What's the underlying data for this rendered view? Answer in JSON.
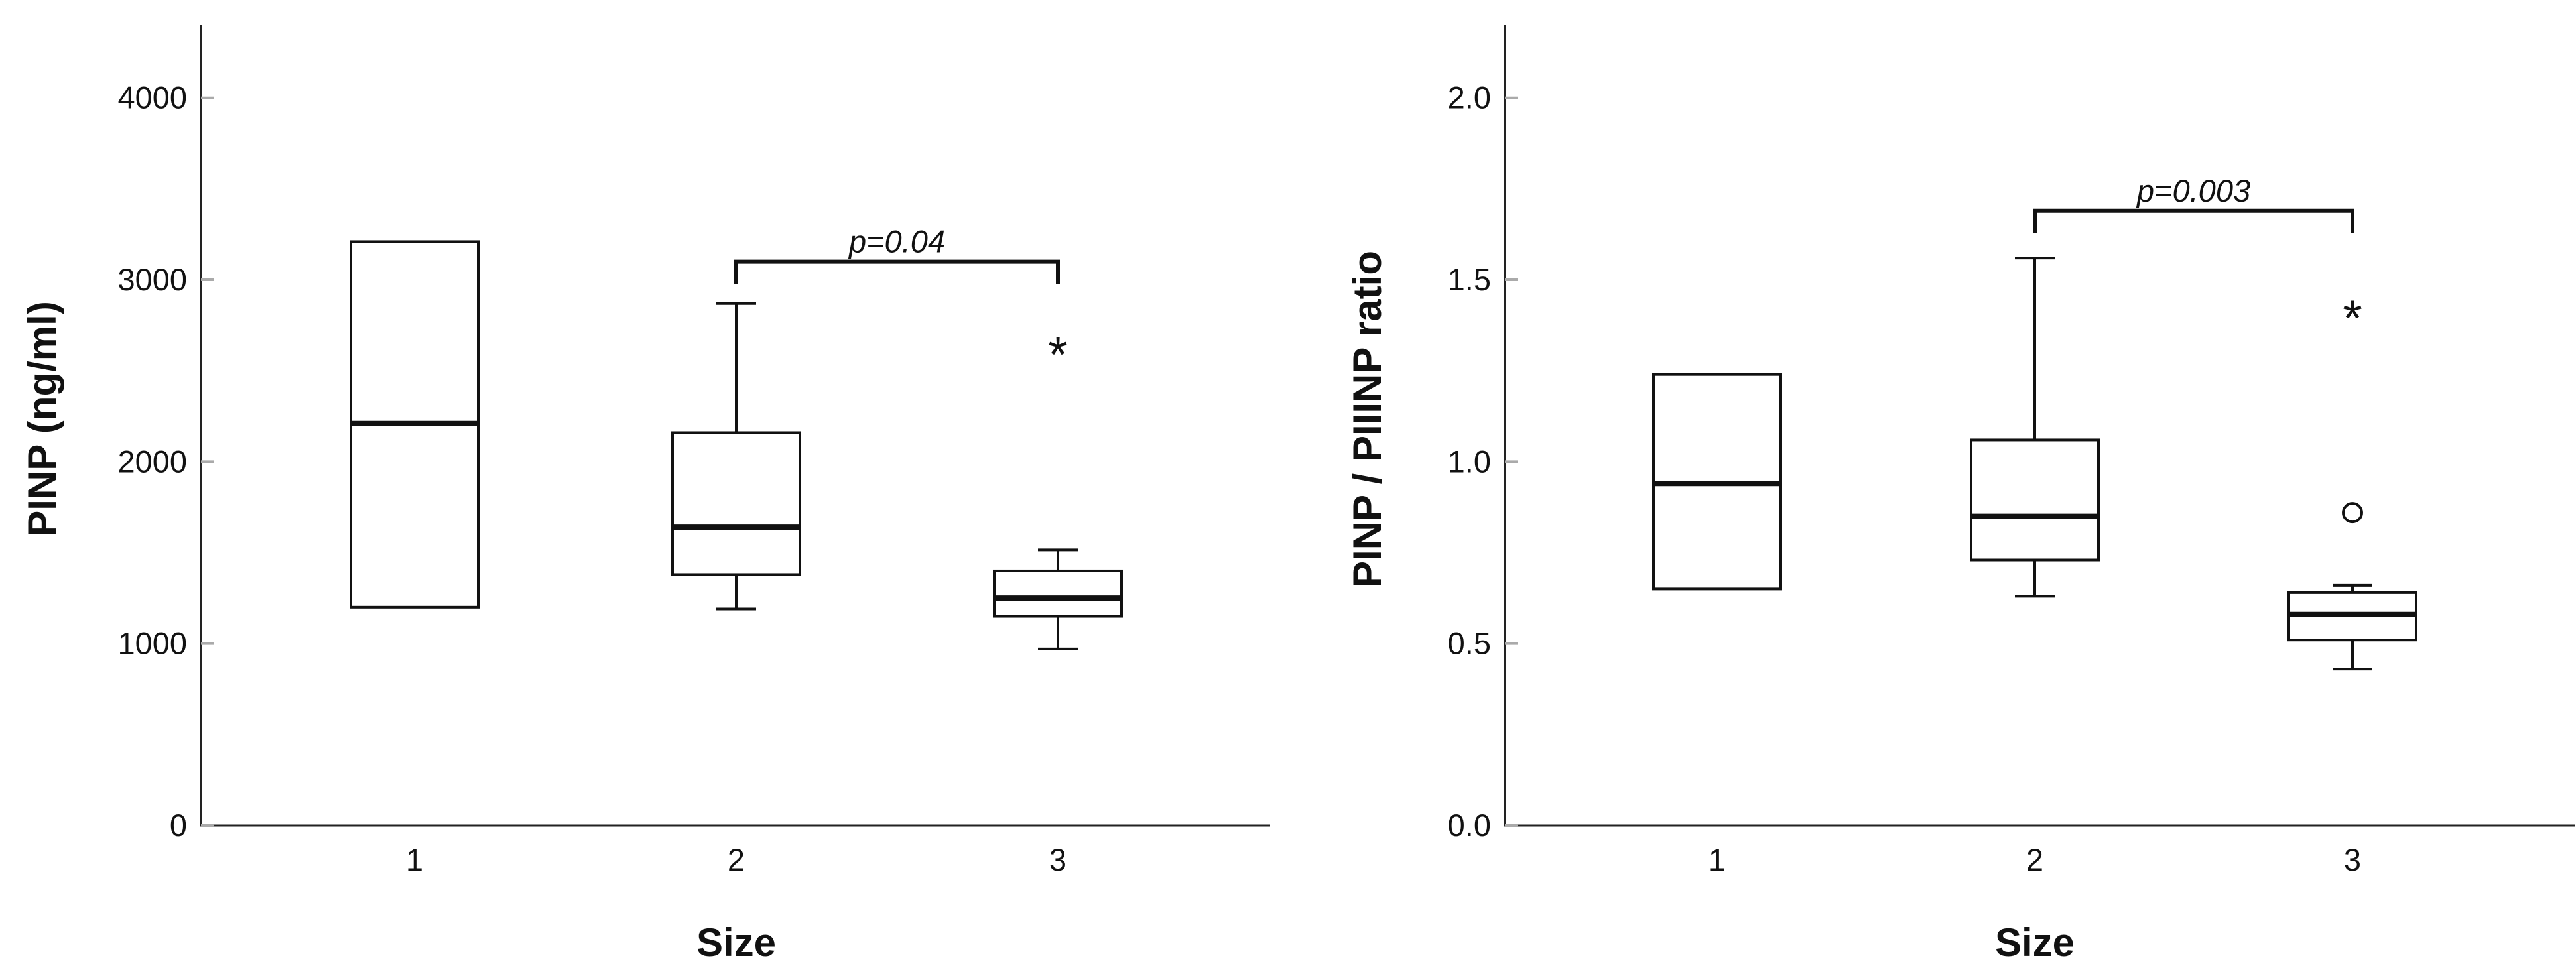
{
  "chart_data": [
    {
      "type": "box",
      "xlabel": "Size",
      "ylabel": "PINP (ng/ml)",
      "ylim": [
        0,
        4400
      ],
      "yticks": [
        0,
        1000,
        2000,
        3000,
        4000
      ],
      "categories": [
        "1",
        "2",
        "3"
      ],
      "boxes": [
        {
          "category": "1",
          "whisker_low": 1200,
          "q1": 1200,
          "median": 2210,
          "q3": 3210,
          "whisker_high": 3210,
          "outliers": []
        },
        {
          "category": "2",
          "whisker_low": 1190,
          "q1": 1380,
          "median": 1640,
          "q3": 2160,
          "whisker_high": 2870,
          "outliers": []
        },
        {
          "category": "3",
          "whisker_low": 970,
          "q1": 1150,
          "median": 1250,
          "q3": 1400,
          "whisker_high": 1515,
          "outliers": [
            {
              "value": 2640,
              "marker": "*"
            }
          ]
        }
      ],
      "annotation": {
        "from": "2",
        "to": "3",
        "y": 3100,
        "text": "p=0.04"
      }
    },
    {
      "type": "box",
      "xlabel": "Size",
      "ylabel": "PINP / PIIINP ratio",
      "ylim": [
        0,
        2.2
      ],
      "yticks": [
        "0.0",
        "0.5",
        "1.0",
        "1.5",
        "2.0"
      ],
      "categories": [
        "1",
        "2",
        "3"
      ],
      "boxes": [
        {
          "category": "1",
          "whisker_low": 0.65,
          "q1": 0.65,
          "median": 0.94,
          "q3": 1.24,
          "whisker_high": 1.24,
          "outliers": []
        },
        {
          "category": "2",
          "whisker_low": 0.63,
          "q1": 0.73,
          "median": 0.85,
          "q3": 1.06,
          "whisker_high": 1.56,
          "outliers": []
        },
        {
          "category": "3",
          "whisker_low": 0.43,
          "q1": 0.51,
          "median": 0.58,
          "q3": 0.64,
          "whisker_high": 0.66,
          "outliers": [
            {
              "value": 1.42,
              "marker": "*"
            },
            {
              "value": 0.86,
              "marker": "o"
            }
          ]
        }
      ],
      "annotation": {
        "from": "2",
        "to": "3",
        "y": 1.69,
        "text": "p=0.003"
      }
    }
  ]
}
